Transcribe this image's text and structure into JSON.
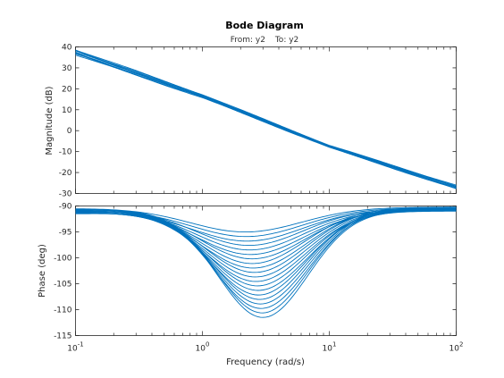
{
  "chart_data": {
    "type": "line",
    "title": "Bode Diagram",
    "subtitle": {
      "from_label": "From: y2",
      "to_label": "To: y2"
    },
    "xlabel": "Frequency  (rad/s)",
    "x_scale": "log",
    "xlim": [
      0.1,
      100
    ],
    "x_ticks": [
      {
        "base": "10",
        "exp": "-1"
      },
      {
        "base": "10",
        "exp": "0"
      },
      {
        "base": "10",
        "exp": "1"
      },
      {
        "base": "10",
        "exp": "2"
      }
    ],
    "line_color": "#0072BD",
    "panels": [
      {
        "name": "magnitude",
        "ylabel": "Magnitude (dB)",
        "ylim": [
          -30,
          40
        ],
        "y_ticks": [
          "40",
          "30",
          "20",
          "10",
          "0",
          "-10",
          "-20",
          "-30"
        ],
        "curves": {
          "description_x": [
            0.1,
            1,
            10,
            100
          ],
          "count": 10,
          "center": [
            37.5,
            16.5,
            -7.5,
            -27.0
          ],
          "spread_dB": [
            2.5,
            1.5,
            1.0,
            1.8
          ]
        }
      },
      {
        "name": "phase",
        "ylabel": "Phase (deg)",
        "ylim": [
          -115,
          -90
        ],
        "y_ticks": [
          "-90",
          "-95",
          "-100",
          "-105",
          "-110",
          "-115"
        ],
        "curves": {
          "count": 20,
          "start_phase_range": [
            -90.5,
            -91.5
          ],
          "end_phase_range": [
            -90.2,
            -91.0
          ],
          "dip_min_range": [
            -95,
            -111.5
          ],
          "dip_frequency_range": [
            2.2,
            3.0
          ]
        }
      }
    ]
  }
}
